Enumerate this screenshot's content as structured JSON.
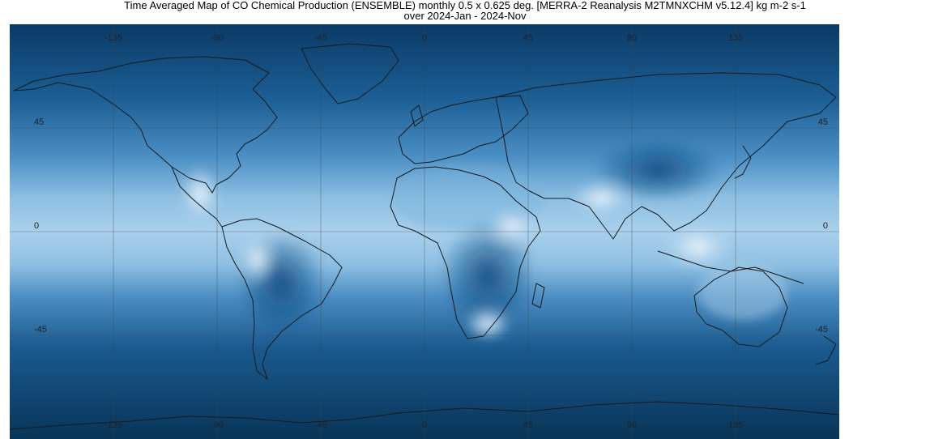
{
  "title": {
    "line1": "Time Averaged Map of CO Chemical Production (ENSEMBLE) monthly 0.5 x 0.625 deg. [MERRA-2 Reanalysis M2TMNXCHM v5.12.4] kg m-2 s-1",
    "line2": "over 2024-Jan - 2024-Nov"
  },
  "map": {
    "projection": "equirectangular",
    "lon_range": [
      -180,
      180
    ],
    "lat_range": [
      -90,
      90
    ],
    "lon_ticks": [
      {
        "value": -135,
        "label": "-135"
      },
      {
        "value": -90,
        "label": "-90"
      },
      {
        "value": -45,
        "label": "-45"
      },
      {
        "value": 0,
        "label": "0"
      },
      {
        "value": 45,
        "label": "45"
      },
      {
        "value": 90,
        "label": "90"
      },
      {
        "value": 135,
        "label": "135"
      }
    ],
    "lat_ticks": [
      {
        "value": 45,
        "label": "45"
      },
      {
        "value": 0,
        "label": "0"
      },
      {
        "value": -45,
        "label": "-45"
      }
    ],
    "colors": {
      "dark": "#0a3f6e",
      "mid": "#2a78b0",
      "light": "#cfe3f2",
      "white": "#f4f8fc",
      "grid": "#444444",
      "coast": "#1a1a1a"
    }
  }
}
